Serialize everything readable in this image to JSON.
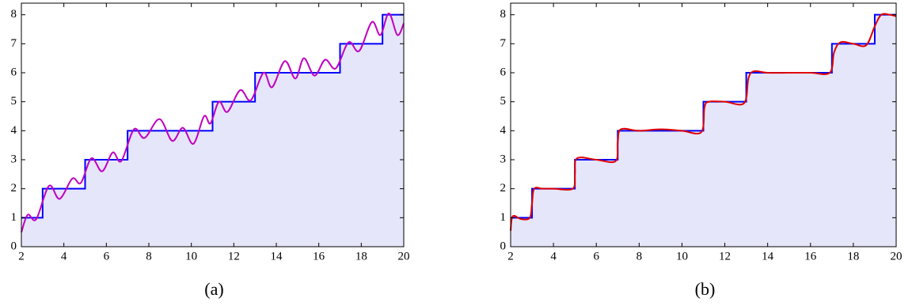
{
  "chart_data": [
    {
      "type": "line",
      "caption": "(a)",
      "xlim": [
        2,
        20
      ],
      "ylim": [
        0,
        8.4
      ],
      "xticks": [
        2,
        4,
        6,
        8,
        10,
        12,
        14,
        16,
        18,
        20
      ],
      "yticks": [
        0,
        1,
        2,
        3,
        4,
        5,
        6,
        7,
        8
      ],
      "area_color": "#e6e6fa",
      "series": [
        {
          "color": "#0000ff",
          "smooth": false,
          "fill": true,
          "x": [
            2,
            3,
            3,
            5,
            5,
            7,
            7,
            11,
            11,
            13,
            13,
            17,
            17,
            19,
            19,
            20
          ],
          "values": [
            1,
            1,
            2,
            2,
            3,
            3,
            4,
            4,
            5,
            5,
            6,
            6,
            7,
            7,
            8,
            8
          ]
        },
        {
          "color": "#c000c0",
          "smooth": true,
          "fill": false,
          "x": [
            2,
            2.3,
            2.7,
            3.3,
            3.8,
            4.4,
            4.8,
            5.3,
            5.8,
            6.3,
            6.7,
            7.3,
            7.8,
            8.5,
            9.1,
            9.6,
            10.1,
            10.6,
            10.9,
            11.3,
            11.7,
            12.3,
            12.8,
            13.4,
            13.8,
            14.4,
            14.9,
            15.3,
            15.8,
            16.3,
            16.8,
            17.4,
            17.9,
            18.5,
            18.9,
            19.3,
            19.7,
            20
          ],
          "values": [
            0.5,
            1.1,
            0.95,
            2.1,
            1.65,
            2.35,
            2.2,
            3.05,
            2.6,
            3.25,
            2.95,
            4.05,
            3.75,
            4.4,
            3.65,
            4.1,
            3.55,
            4.5,
            4.25,
            5.0,
            4.65,
            5.4,
            5.05,
            6.0,
            5.5,
            6.4,
            5.8,
            6.5,
            5.9,
            6.45,
            6.15,
            7.05,
            6.75,
            7.75,
            7.3,
            8.05,
            7.3,
            7.7
          ]
        }
      ]
    },
    {
      "type": "line",
      "caption": "(b)",
      "xlim": [
        2,
        20
      ],
      "ylim": [
        0,
        8.4
      ],
      "xticks": [
        2,
        4,
        6,
        8,
        10,
        12,
        14,
        16,
        18,
        20
      ],
      "yticks": [
        0,
        1,
        2,
        3,
        4,
        5,
        6,
        7,
        8
      ],
      "area_color": "#e6e6fa",
      "series": [
        {
          "color": "#0000ff",
          "smooth": false,
          "fill": true,
          "x": [
            2,
            3,
            3,
            5,
            5,
            7,
            7,
            11,
            11,
            13,
            13,
            17,
            17,
            19,
            19,
            20
          ],
          "values": [
            1,
            1,
            2,
            2,
            3,
            3,
            4,
            4,
            5,
            5,
            6,
            6,
            7,
            7,
            8,
            8
          ]
        },
        {
          "color": "#e00000",
          "smooth": true,
          "fill": false,
          "x": [
            2,
            2.1,
            2.5,
            2.9,
            3.0,
            3.1,
            3.5,
            4,
            4.9,
            5.0,
            5.1,
            6,
            6.9,
            7.0,
            7.15,
            8,
            9,
            10,
            10.9,
            11.05,
            11.25,
            12,
            12.9,
            13.1,
            13.35,
            14,
            15,
            16,
            16.9,
            17.1,
            17.4,
            18,
            18.6,
            19.0,
            19.3,
            19.7,
            20
          ],
          "values": [
            0.55,
            1.05,
            0.95,
            1.0,
            1.5,
            2.0,
            2.0,
            2.0,
            2.0,
            2.5,
            3.05,
            3.0,
            2.95,
            3.6,
            4.05,
            4.0,
            4.05,
            4.0,
            3.95,
            4.8,
            5.0,
            5.0,
            4.95,
            5.8,
            6.05,
            6.0,
            6.0,
            6.0,
            6.0,
            6.7,
            7.05,
            7.0,
            6.95,
            7.6,
            8.0,
            8.0,
            7.95
          ]
        }
      ]
    }
  ]
}
